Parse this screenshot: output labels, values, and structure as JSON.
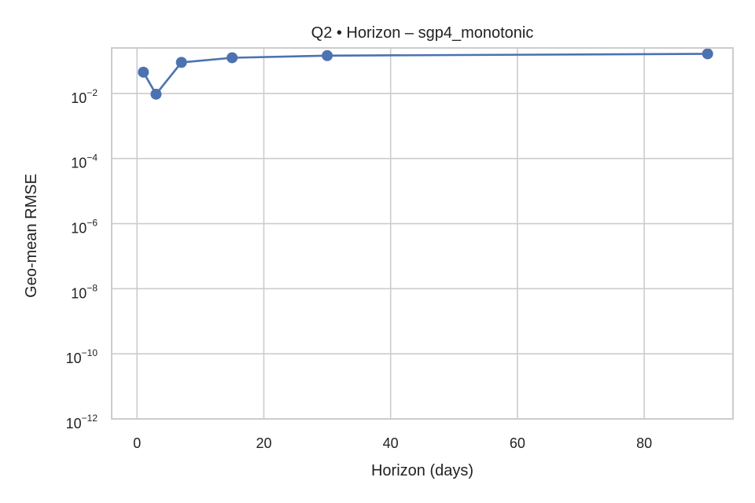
{
  "chart_data": {
    "type": "line",
    "title": "Q2 • Horizon – sgp4_monotonic",
    "xlabel": "Horizon (days)",
    "ylabel": "Geo-mean RMSE",
    "xlim": [
      -4,
      94
    ],
    "ylim": [
      1e-12,
      0.25
    ],
    "yscale": "log",
    "grid": true,
    "legend": "none",
    "x_ticks": [
      0,
      20,
      40,
      60,
      80
    ],
    "y_ticks": [
      {
        "value": 1e-12,
        "base": "10",
        "exp": "−12"
      },
      {
        "value": 1e-10,
        "base": "10",
        "exp": "−10"
      },
      {
        "value": 1e-08,
        "base": "10",
        "exp": "−8"
      },
      {
        "value": 1e-06,
        "base": "10",
        "exp": "−6"
      },
      {
        "value": 0.0001,
        "base": "10",
        "exp": "−4"
      },
      {
        "value": 0.01,
        "base": "10",
        "exp": "−2"
      }
    ],
    "series": [
      {
        "x": [
          1,
          3,
          7,
          15,
          30,
          90
        ],
        "y": [
          0.045,
          0.0095,
          0.09,
          0.125,
          0.145,
          0.165
        ],
        "color": "#4c72b0"
      }
    ]
  }
}
